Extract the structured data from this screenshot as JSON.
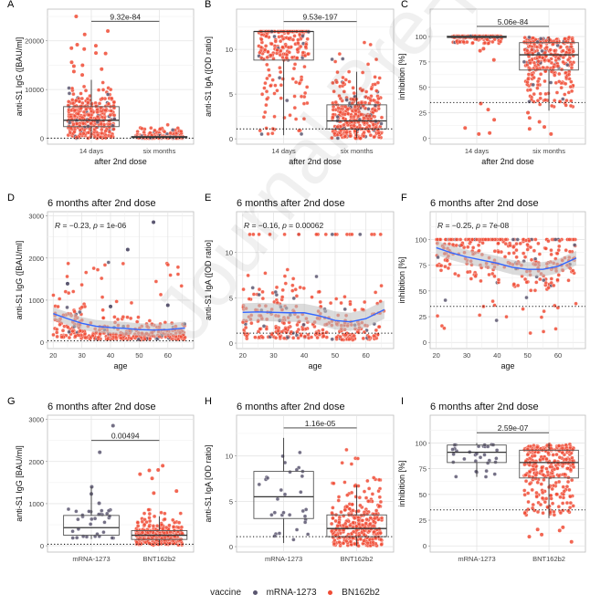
{
  "watermark": "Journal Pre-proof",
  "legend": {
    "title": "vaccine",
    "entries": [
      {
        "label": "mRNA-1273",
        "color": "#5a5670"
      },
      {
        "label": "BN162b2",
        "color": "#f04b35"
      }
    ]
  },
  "colors": {
    "mrna": "#5a5670",
    "bnt": "#f04b35",
    "loess": "#3366ff",
    "ribbon": "#bdbdbd"
  },
  "chart_data": [
    {
      "id": "A",
      "type": "box",
      "panel_label": "A",
      "title": "",
      "xlabel": "after 2nd dose",
      "ylabel": "anti-S1 IgG ([BAU/ml]",
      "categories": [
        "14  days",
        "six months"
      ],
      "ylim": [
        -1200,
        26500
      ],
      "yticks": [
        0,
        10000,
        20000
      ],
      "cutoff": 35.2,
      "boxes": [
        {
          "q1": 2400,
          "median": 3700,
          "q3": 6500,
          "lo": 0,
          "hi": 12000
        },
        {
          "q1": 150,
          "median": 280,
          "q3": 380,
          "lo": 20,
          "hi": 700
        }
      ],
      "spread": [
        [
          0,
          12000,
          330
        ],
        [
          0,
          3200,
          300
        ]
      ],
      "outliers": [
        [
          0,
          25000
        ],
        [
          0,
          22000
        ],
        [
          0,
          21300
        ],
        [
          0,
          19200
        ],
        [
          0,
          19000
        ],
        [
          0,
          18500
        ],
        [
          0,
          18300
        ],
        [
          0,
          17500
        ],
        [
          0,
          17400
        ],
        [
          0,
          15600
        ],
        [
          0,
          15000
        ],
        [
          0,
          14800
        ],
        [
          0,
          14200
        ],
        [
          0,
          13700
        ],
        [
          0,
          13000
        ]
      ],
      "pvalue": "9.32e-84",
      "bracket_y": 24000
    },
    {
      "id": "B",
      "type": "box",
      "panel_label": "B",
      "title": "",
      "xlabel": "after 2nd dose",
      "ylabel": "anti-S1 IgA ([OD ratio]",
      "categories": [
        "14  days",
        "six months"
      ],
      "ylim": [
        -0.6,
        14.5
      ],
      "yticks": [
        0,
        5,
        10
      ],
      "cutoff": 1.1,
      "boxes": [
        {
          "q1": 8.8,
          "median": 12,
          "q3": 12,
          "lo": 0.4,
          "hi": 12
        },
        {
          "q1": 1.1,
          "median": 2.0,
          "q3": 3.8,
          "lo": 0.1,
          "hi": 7.5
        }
      ],
      "spread": [
        [
          0.4,
          12,
          260
        ],
        [
          0.05,
          12,
          330
        ]
      ],
      "outliers": [],
      "pvalue": "9.53e-197",
      "bracket_y": 13.1
    },
    {
      "id": "C",
      "type": "box",
      "panel_label": "C",
      "title": "",
      "xlabel": "after 2nd dose",
      "ylabel": "inhibition [%]",
      "categories": [
        "14  days",
        "six months"
      ],
      "ylim": [
        -6,
        127
      ],
      "yticks": [
        0,
        25,
        50,
        75,
        100
      ],
      "cutoff": 35,
      "boxes": [
        {
          "q1": 99,
          "median": 99.5,
          "q3": 100.5,
          "lo": 97,
          "hi": 100.5
        },
        {
          "q1": 67,
          "median": 82,
          "q3": 94,
          "lo": 27,
          "hi": 100
        }
      ],
      "spread": [
        [
          93,
          100.5,
          150
        ],
        [
          30,
          100,
          330
        ]
      ],
      "outliers": [
        [
          0,
          88
        ],
        [
          0,
          86
        ],
        [
          0,
          77
        ],
        [
          0,
          34
        ],
        [
          0,
          28
        ],
        [
          0,
          18
        ],
        [
          0,
          10
        ],
        [
          0,
          5
        ],
        [
          0,
          4
        ],
        [
          1,
          25
        ],
        [
          1,
          20
        ],
        [
          1,
          16
        ],
        [
          1,
          11
        ],
        [
          1,
          9
        ],
        [
          1,
          4
        ]
      ],
      "pvalue": "5.06e-84",
      "bracket_y": 110
    },
    {
      "id": "D",
      "type": "scatter",
      "panel_label": "D",
      "title": "6 months after 2nd dose",
      "xlabel": "age",
      "ylabel": "anti-S1 IgG ([BAU/ml]",
      "xlim": [
        18,
        69
      ],
      "ylim": [
        -150,
        3100
      ],
      "xticks": [
        20,
        30,
        40,
        50,
        60
      ],
      "yticks": [
        0,
        1000,
        2000,
        3000
      ],
      "cutoff": 35.2,
      "annotation": {
        "r": "-0.23",
        "p": "1e-06"
      },
      "loess": [
        [
          20,
          680
        ],
        [
          25,
          560
        ],
        [
          30,
          450
        ],
        [
          35,
          380
        ],
        [
          40,
          350
        ],
        [
          45,
          330
        ],
        [
          50,
          300
        ],
        [
          55,
          290
        ],
        [
          60,
          300
        ],
        [
          66,
          340
        ]
      ],
      "band": 150,
      "ymaxCloud": 700
    },
    {
      "id": "E",
      "type": "scatter",
      "panel_label": "E",
      "title": "6 months after 2nd dose",
      "xlabel": "age",
      "ylabel": "anti-S1 IgA ([OD ratio]",
      "xlim": [
        18,
        69
      ],
      "ylim": [
        -0.6,
        14.5
      ],
      "xticks": [
        20,
        30,
        40,
        50,
        60
      ],
      "yticks": [
        0,
        5,
        10
      ],
      "cutoff": 1.1,
      "annotation": {
        "r": "-0.16",
        "p": "0.00062"
      },
      "loess": [
        [
          20,
          3.4
        ],
        [
          25,
          3.45
        ],
        [
          30,
          3.4
        ],
        [
          35,
          3.35
        ],
        [
          40,
          3.35
        ],
        [
          45,
          3.0
        ],
        [
          50,
          2.5
        ],
        [
          55,
          2.35
        ],
        [
          60,
          2.7
        ],
        [
          66,
          3.7
        ]
      ],
      "band": 1.0,
      "ymaxCloud": 12
    },
    {
      "id": "F",
      "type": "scatter",
      "panel_label": "F",
      "title": "6 months after 2nd dose",
      "xlabel": "age",
      "ylabel": "inhibition [%]",
      "xlim": [
        18,
        69
      ],
      "ylim": [
        -6,
        127
      ],
      "xticks": [
        20,
        30,
        40,
        50,
        60
      ],
      "yticks": [
        0,
        25,
        50,
        75,
        100
      ],
      "cutoff": 35,
      "annotation": {
        "r": "-0.25",
        "p": "7e-08"
      },
      "loess": [
        [
          20,
          92
        ],
        [
          25,
          87
        ],
        [
          30,
          83
        ],
        [
          35,
          80
        ],
        [
          40,
          77
        ],
        [
          45,
          73
        ],
        [
          50,
          71
        ],
        [
          55,
          71
        ],
        [
          60,
          74
        ],
        [
          66,
          82
        ]
      ],
      "band": 7,
      "ymaxCloud": 100
    },
    {
      "id": "G",
      "type": "box",
      "panel_label": "G",
      "title": "6 months after 2nd dose",
      "xlabel": "",
      "ylabel": "anti-S1 IgG [BAU/ml]",
      "categories": [
        "mRNA-1273",
        "BNT162b2"
      ],
      "ylim": [
        -150,
        3100
      ],
      "yticks": [
        0,
        1000,
        2000,
        3000
      ],
      "cutoff": 35.2,
      "boxes": [
        {
          "q1": 250,
          "median": 430,
          "q3": 720,
          "lo": 160,
          "hi": 1400
        },
        {
          "q1": 150,
          "median": 250,
          "q3": 360,
          "lo": 10,
          "hi": 700
        }
      ],
      "spread": [
        [
          160,
          1000,
          32
        ],
        [
          10,
          1000,
          300
        ]
      ],
      "outliers": [
        [
          0,
          2850
        ],
        [
          0,
          2220
        ],
        [
          0,
          1400
        ],
        [
          0,
          1230
        ],
        [
          0,
          1010
        ],
        [
          1,
          1900
        ],
        [
          1,
          1800
        ],
        [
          1,
          1790
        ],
        [
          1,
          1700
        ],
        [
          1,
          1600
        ],
        [
          1,
          1300
        ],
        [
          1,
          1250
        ]
      ],
      "pvalue": "0.00494",
      "bracket_y": 2500,
      "mrnaOnlyFirst": true
    },
    {
      "id": "H",
      "type": "box",
      "panel_label": "H",
      "title": "6 months after 2nd dose",
      "xlabel": "",
      "ylabel": "anti-S1 IgA [OD ratio]",
      "categories": [
        "mRNA-1273",
        "BNT162b2"
      ],
      "ylim": [
        -0.6,
        14.5
      ],
      "yticks": [
        0,
        5,
        10
      ],
      "cutoff": 1.1,
      "boxes": [
        {
          "q1": 3.1,
          "median": 5.5,
          "q3": 8.3,
          "lo": 0.4,
          "hi": 12
        },
        {
          "q1": 1.1,
          "median": 2.0,
          "q3": 3.5,
          "lo": 0.05,
          "hi": 6.8
        }
      ],
      "spread": [
        [
          0.4,
          12,
          32
        ],
        [
          0.05,
          12,
          300
        ]
      ],
      "outliers": [],
      "pvalue": "1.16e-05",
      "bracket_y": 13.1,
      "mrnaOnlyFirst": true
    },
    {
      "id": "I",
      "type": "box",
      "panel_label": "I",
      "title": "6 months after 2nd dose",
      "xlabel": "",
      "ylabel": "inhibition [%]",
      "categories": [
        "mRNA-1273",
        "BNT162b2"
      ],
      "ylim": [
        -6,
        127
      ],
      "yticks": [
        0,
        25,
        50,
        75,
        100
      ],
      "cutoff": 35,
      "boxes": [
        {
          "q1": 81,
          "median": 91,
          "q3": 98,
          "lo": 67,
          "hi": 100
        },
        {
          "q1": 66,
          "median": 81,
          "q3": 93,
          "lo": 27,
          "hi": 100
        }
      ],
      "spread": [
        [
          66,
          100,
          32
        ],
        [
          30,
          100,
          330
        ]
      ],
      "outliers": [
        [
          1,
          18
        ],
        [
          1,
          16
        ],
        [
          1,
          15
        ],
        [
          1,
          11
        ],
        [
          1,
          9
        ],
        [
          1,
          4
        ]
      ],
      "pvalue": "2.59e-07",
      "bracket_y": 110,
      "mrnaOnlyFirst": true
    }
  ]
}
